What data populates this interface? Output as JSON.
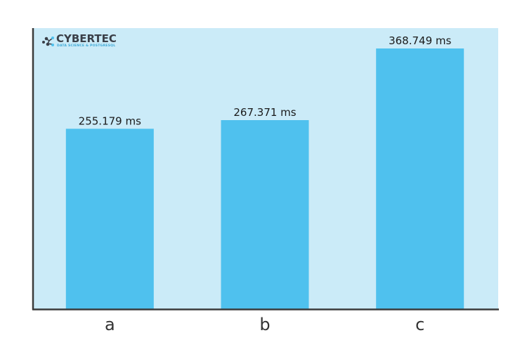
{
  "logo": {
    "name": "CYBERTEC",
    "tagline": "DATA SCIENCE & POSTGRESQL",
    "icon": "molecule-logo-icon"
  },
  "chart_data": {
    "type": "bar",
    "categories": [
      "a",
      "b",
      "c"
    ],
    "values": [
      255.179,
      267.371,
      368.749
    ],
    "value_labels": [
      "255.179 ms",
      "267.371 ms",
      "368.749 ms"
    ],
    "title": "",
    "xlabel": "",
    "ylabel": "",
    "ylim": [
      0,
      400
    ],
    "grid": false,
    "legend": "none",
    "colors": {
      "bar": "#4fc1ee",
      "plot_bg": "#cbebf8",
      "axis": "#3b3b3b"
    }
  }
}
